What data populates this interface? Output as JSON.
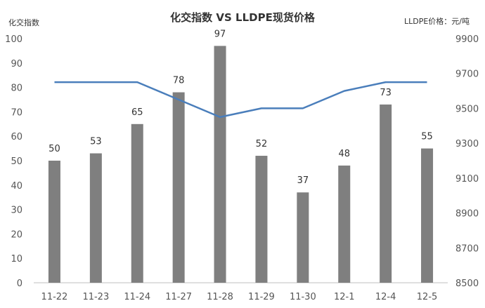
{
  "chart_data": {
    "type": "bar",
    "title": "化交指数 VS LLDPE现货价格",
    "ylabel_left": "化交指数",
    "ylabel_right": "LLDPE价格：元/吨",
    "categories": [
      "11-22",
      "11-23",
      "11-24",
      "11-27",
      "11-28",
      "11-29",
      "11-30",
      "12-1",
      "12-4",
      "12-5"
    ],
    "bar_values": [
      50,
      53,
      65,
      78,
      97,
      52,
      37,
      48,
      73,
      55
    ],
    "bar_labels": [
      "50",
      "53",
      "65",
      "78",
      "97",
      "52",
      "37",
      "48",
      "73",
      "55"
    ],
    "line_values": [
      9650,
      9650,
      9650,
      9550,
      9450,
      9500,
      9500,
      9600,
      9650,
      9650
    ],
    "ylim_left": [
      0,
      100
    ],
    "yticks_left": [
      "0",
      "10",
      "20",
      "30",
      "40",
      "50",
      "60",
      "70",
      "80",
      "90",
      "100"
    ],
    "ylim_right": [
      8500,
      9900
    ],
    "yticks_right": [
      "8500",
      "8700",
      "8900",
      "9100",
      "9300",
      "9500",
      "9700",
      "9900"
    ],
    "bar_color": "#7f7f7f",
    "line_color": "#4a7ebb",
    "grid": false,
    "legend": "none"
  }
}
